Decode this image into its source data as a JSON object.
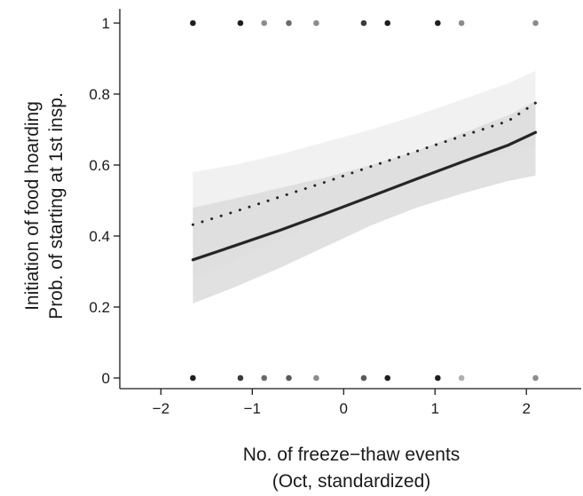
{
  "chart_data": {
    "type": "line",
    "title": "",
    "xlabel_lines": [
      "No. of freeze−thaw events",
      "(Oct, standardized)"
    ],
    "ylabel_lines": [
      "Initiation of food hoarding",
      "Prob. of starting at 1st insp."
    ],
    "xlim": [
      -2.45,
      2.6
    ],
    "ylim": [
      -0.03,
      1.04
    ],
    "x_ticks": [
      -2,
      -1,
      0,
      1,
      2
    ],
    "x_tick_labels": [
      "−2",
      "−1",
      "0",
      "1",
      "2"
    ],
    "y_ticks": [
      0,
      0.2,
      0.4,
      0.6,
      0.8,
      1
    ],
    "y_tick_labels": [
      "0",
      "0.2",
      "0.4",
      "0.6",
      "0.8",
      "1"
    ],
    "grid": false,
    "x_range": [
      -1.65,
      2.1
    ],
    "series": [
      {
        "style": "solid",
        "color": "#262626",
        "x": [
          -1.65,
          -1.2,
          -0.7,
          -0.2,
          0.3,
          0.8,
          1.3,
          1.8,
          2.1
        ],
        "y": [
          0.333,
          0.372,
          0.416,
          0.463,
          0.512,
          0.561,
          0.609,
          0.656,
          0.692
        ],
        "band": {
          "lower": [
            0.21,
            0.255,
            0.31,
            0.37,
            0.43,
            0.48,
            0.52,
            0.555,
            0.57
          ],
          "upper": [
            0.48,
            0.505,
            0.535,
            0.565,
            0.6,
            0.64,
            0.69,
            0.74,
            0.78
          ],
          "color": "#dcdcdc"
        }
      },
      {
        "style": "dotted",
        "color": "#262626",
        "x": [
          -1.65,
          -1.2,
          -0.7,
          -0.2,
          0.3,
          0.8,
          1.3,
          1.8,
          2.1
        ],
        "y": [
          0.432,
          0.468,
          0.51,
          0.552,
          0.596,
          0.639,
          0.682,
          0.724,
          0.775
        ],
        "band": {
          "lower": [
            0.28,
            0.33,
            0.39,
            0.45,
            0.51,
            0.56,
            0.6,
            0.635,
            0.65
          ],
          "upper": [
            0.58,
            0.6,
            0.63,
            0.665,
            0.7,
            0.74,
            0.785,
            0.83,
            0.865
          ],
          "color": "#eeeeee"
        }
      }
    ],
    "points": [
      {
        "x": -1.65,
        "y": 1,
        "color": "#1f1f1f"
      },
      {
        "x": -1.13,
        "y": 1,
        "color": "#1f1f1f"
      },
      {
        "x": -0.87,
        "y": 1,
        "color": "#8c8c8c"
      },
      {
        "x": -0.6,
        "y": 1,
        "color": "#6a6a6a"
      },
      {
        "x": -0.3,
        "y": 1,
        "color": "#8c8c8c"
      },
      {
        "x": 0.22,
        "y": 1,
        "color": "#3a3a3a"
      },
      {
        "x": 0.48,
        "y": 1,
        "color": "#1f1f1f"
      },
      {
        "x": 1.03,
        "y": 1,
        "color": "#1f1f1f"
      },
      {
        "x": 1.29,
        "y": 1,
        "color": "#8c8c8c"
      },
      {
        "x": 2.1,
        "y": 1,
        "color": "#8c8c8c"
      },
      {
        "x": -1.65,
        "y": 0,
        "color": "#1f1f1f"
      },
      {
        "x": -1.13,
        "y": 0,
        "color": "#3a3a3a"
      },
      {
        "x": -0.87,
        "y": 0,
        "color": "#6a6a6a"
      },
      {
        "x": -0.6,
        "y": 0,
        "color": "#5a5a5a"
      },
      {
        "x": -0.3,
        "y": 0,
        "color": "#8c8c8c"
      },
      {
        "x": 0.22,
        "y": 0,
        "color": "#5a5a5a"
      },
      {
        "x": 0.48,
        "y": 0,
        "color": "#1f1f1f"
      },
      {
        "x": 1.03,
        "y": 0,
        "color": "#1f1f1f"
      },
      {
        "x": 1.29,
        "y": 0,
        "color": "#b0b0b0"
      },
      {
        "x": 2.1,
        "y": 0,
        "color": "#8c8c8c"
      }
    ]
  }
}
